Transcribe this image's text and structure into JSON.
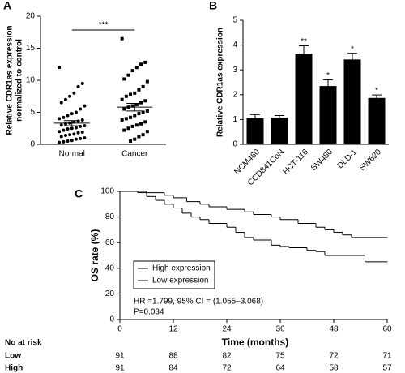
{
  "chart_data": [
    {
      "type": "scatter",
      "panel_label": "A",
      "ylabel": [
        "Relative CDR1as expression",
        "normalized to control"
      ],
      "categories": [
        "Normal",
        "Cancer"
      ],
      "values": [
        [
          12.0,
          9.5,
          9.0,
          8.0,
          7.5,
          7.0,
          6.5,
          6.0,
          5.5,
          5.0,
          4.8,
          4.5,
          4.2,
          4.0,
          3.8,
          3.6,
          3.5,
          3.3,
          3.2,
          3.0,
          2.9,
          2.8,
          2.6,
          2.5,
          2.4,
          2.2,
          2.0,
          1.9,
          1.8,
          1.6,
          1.5,
          1.4,
          1.2,
          1.0,
          0.9,
          0.8,
          0.6,
          0.5,
          0.4,
          0.3
        ],
        [
          16.5,
          12.8,
          12.5,
          12.0,
          11.5,
          10.8,
          10.2,
          9.8,
          9.0,
          8.5,
          8.0,
          7.8,
          7.5,
          7.0,
          6.8,
          6.5,
          6.2,
          6.0,
          5.8,
          5.5,
          5.2,
          5.0,
          4.8,
          4.5,
          4.2,
          4.0,
          3.8,
          3.5,
          3.2,
          3.0,
          2.8,
          2.5,
          2.2,
          2.0,
          1.5,
          1.2,
          0.8,
          0.5
        ]
      ],
      "mean": [
        3.3,
        5.8
      ],
      "sem": [
        0.4,
        0.6
      ],
      "significance": "***",
      "ylim": [
        0,
        20
      ],
      "yticks": [
        0,
        5,
        10,
        15,
        20
      ],
      "color": "#000000"
    },
    {
      "type": "bar",
      "panel_label": "B",
      "ylabel": "Relative CDR1as expression",
      "categories": [
        "NCM460",
        "CCD841CoN",
        "HCT-116",
        "SW480",
        "DLD-1",
        "SW620"
      ],
      "values": [
        1.05,
        1.08,
        3.65,
        2.35,
        3.42,
        1.87
      ],
      "errors": [
        0.15,
        0.08,
        0.32,
        0.25,
        0.25,
        0.12
      ],
      "annotations": [
        null,
        null,
        "**",
        "*",
        "*",
        "*"
      ],
      "ylim": [
        0,
        5
      ],
      "yticks": [
        0,
        1,
        2,
        3,
        4,
        5
      ],
      "color": "#000000"
    },
    {
      "type": "survival",
      "panel_label": "C",
      "xlabel": "Time (months)",
      "ylabel": "OS rate (%)",
      "xlim": [
        0,
        60
      ],
      "xticks": [
        0,
        12,
        24,
        36,
        48,
        60
      ],
      "ylim": [
        0,
        100
      ],
      "yticks": [
        0,
        20,
        40,
        60,
        80,
        100
      ],
      "series": [
        {
          "name": "High expression",
          "color": "#c0272d",
          "x": [
            0,
            4,
            6,
            8,
            10,
            12,
            14,
            16,
            18,
            20,
            24,
            26,
            28,
            30,
            34,
            36,
            38,
            42,
            44,
            46,
            55,
            60
          ],
          "values": [
            100,
            99,
            96,
            93,
            90,
            87,
            83,
            80,
            78,
            75,
            72,
            68,
            64,
            62,
            58,
            57,
            56,
            54,
            53,
            50,
            45,
            45
          ]
        },
        {
          "name": "Low expression",
          "color": "#000000",
          "x": [
            0,
            6,
            10,
            12,
            15,
            18,
            20,
            24,
            28,
            30,
            34,
            36,
            40,
            44,
            46,
            48,
            50,
            52,
            60
          ],
          "values": [
            100,
            99,
            97,
            95,
            92,
            90,
            88,
            86,
            84,
            82,
            80,
            78,
            75,
            72,
            70,
            68,
            66,
            64,
            64
          ]
        }
      ],
      "annotations": [
        "HR =1.799, 95% CI = (1.055–3.068)",
        "P=0.034"
      ],
      "at_risk": {
        "title": "No at risk",
        "rows": [
          {
            "name": "Low",
            "values": [
              91,
              88,
              82,
              75,
              72,
              71
            ]
          },
          {
            "name": "High",
            "values": [
              91,
              84,
              72,
              64,
              58,
              57
            ]
          }
        ]
      }
    }
  ]
}
